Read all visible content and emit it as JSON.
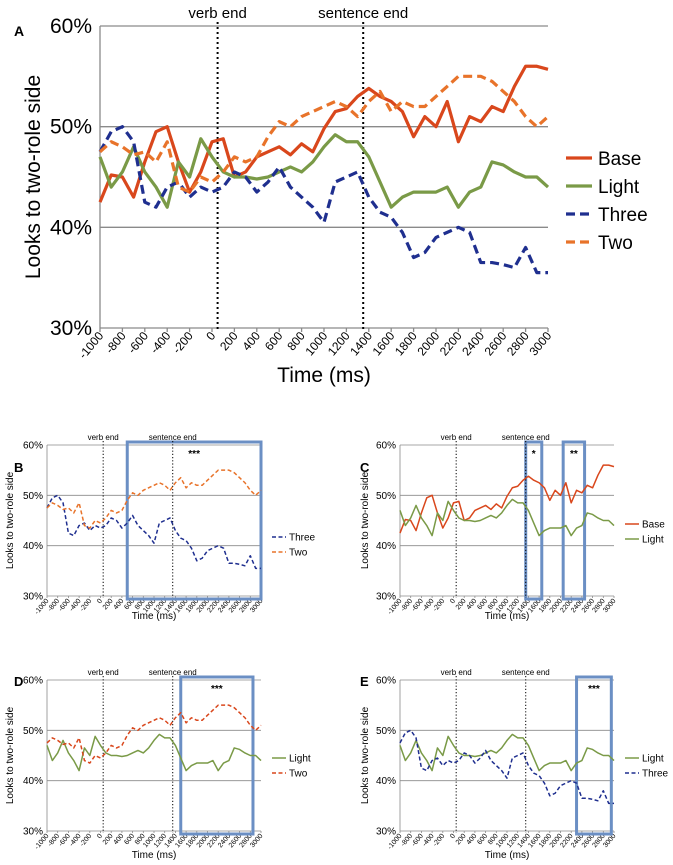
{
  "chart_data": [
    {
      "panel": "A",
      "type": "line",
      "xlabel": "Time (ms)",
      "ylabel": "Looks to two-role side",
      "ylim": [
        30,
        60
      ],
      "yticks": [
        "30%",
        "40%",
        "50%",
        "60%"
      ],
      "xlim": [
        -1000,
        3000
      ],
      "xticks": [
        "-1000",
        "-800",
        "-600",
        "-400",
        "-200",
        "0",
        "200",
        "400",
        "600",
        "800",
        "1000",
        "1200",
        "1400",
        "1600",
        "1800",
        "2000",
        "2200",
        "2400",
        "2600",
        "2800",
        "3000"
      ],
      "markers": [
        {
          "label": "verb end",
          "x": 50
        },
        {
          "label": "sentence end",
          "x": 1350
        }
      ],
      "boxes": [],
      "legend": [
        "Base",
        "Light",
        "Three",
        "Two"
      ],
      "x": [
        -1000,
        -900,
        -800,
        -700,
        -600,
        -500,
        -400,
        -300,
        -200,
        -100,
        0,
        100,
        200,
        300,
        400,
        500,
        600,
        700,
        800,
        900,
        1000,
        1100,
        1200,
        1300,
        1400,
        1500,
        1600,
        1700,
        1800,
        1900,
        2000,
        2100,
        2200,
        2300,
        2400,
        2500,
        2600,
        2700,
        2800,
        2900,
        3000
      ],
      "series": [
        {
          "name": "Base",
          "color": "#D9471C",
          "dash": "solid",
          "values": [
            42.5,
            45.2,
            45.0,
            43.0,
            46.5,
            49.5,
            50.0,
            46.5,
            43.5,
            45.5,
            48.5,
            48.8,
            45.0,
            45.5,
            47.0,
            47.5,
            48.0,
            47.2,
            48.3,
            47.5,
            49.8,
            51.5,
            51.8,
            53.0,
            53.8,
            53.0,
            52.5,
            51.5,
            49.0,
            51.0,
            50.0,
            52.5,
            48.5,
            51.0,
            50.5,
            52.0,
            51.5,
            54.0,
            56.0,
            56.0,
            55.7
          ]
        },
        {
          "name": "Light",
          "color": "#7A9A47",
          "dash": "solid",
          "values": [
            47.0,
            44.0,
            45.5,
            48.0,
            45.5,
            44.0,
            42.0,
            46.5,
            45.0,
            48.8,
            47.0,
            45.5,
            45.0,
            45.0,
            44.8,
            45.0,
            45.5,
            46.0,
            45.5,
            46.5,
            48.0,
            49.2,
            48.5,
            48.5,
            47.0,
            44.5,
            42.0,
            43.0,
            43.5,
            43.5,
            43.5,
            44.0,
            42.0,
            43.5,
            44.0,
            46.5,
            46.2,
            45.5,
            45.0,
            45.0,
            44.0
          ]
        },
        {
          "name": "Three",
          "color": "#1F2F8F",
          "dash": "dashed",
          "values": [
            47.5,
            49.5,
            50.0,
            48.5,
            42.5,
            42.0,
            44.0,
            44.5,
            43.0,
            44.0,
            43.5,
            44.0,
            45.5,
            45.0,
            43.5,
            44.5,
            46.0,
            44.0,
            43.0,
            42.0,
            40.5,
            44.5,
            45.0,
            45.5,
            43.0,
            41.5,
            41.0,
            39.5,
            37.0,
            37.5,
            39.0,
            39.5,
            40.0,
            39.5,
            36.5,
            36.5,
            36.3,
            36.0,
            38.0,
            35.5,
            35.5
          ]
        },
        {
          "name": "Two",
          "color": "#E8732A",
          "dash": "dashed",
          "values": [
            47.5,
            48.5,
            48.0,
            47.2,
            47.5,
            46.5,
            48.5,
            44.0,
            43.5,
            45.0,
            44.5,
            45.5,
            47.0,
            46.5,
            47.0,
            49.0,
            50.5,
            50.0,
            51.0,
            51.5,
            52.0,
            52.5,
            52.0,
            51.0,
            52.5,
            53.5,
            51.5,
            52.5,
            52.0,
            52.0,
            53.0,
            54.0,
            55.0,
            55.0,
            55.0,
            54.5,
            53.5,
            52.5,
            51.0,
            50.0,
            51.0
          ]
        }
      ]
    },
    {
      "panel": "B",
      "type": "line",
      "xlabel": "Time (ms)",
      "ylabel": "Looks to two-role side",
      "ylim": [
        30,
        60
      ],
      "yticks": [
        "30%",
        "40%",
        "50%",
        "60%"
      ],
      "xlim": [
        -1000,
        3000
      ],
      "xticks": [
        "-1000",
        "-800",
        "-600",
        "-400",
        "-200",
        "0",
        "200",
        "400",
        "600",
        "800",
        "1000",
        "1200",
        "1400",
        "1600",
        "1800",
        "2000",
        "2200",
        "2400",
        "2600",
        "2800",
        "3000"
      ],
      "markers": [
        {
          "label": "verb end",
          "x": 50
        },
        {
          "label": "sentence end",
          "x": 1350
        }
      ],
      "boxes": [
        {
          "x0": 500,
          "x1": 3000,
          "label": "***"
        }
      ],
      "legend": [
        "Three",
        "Two"
      ],
      "x": [
        -1000,
        -900,
        -800,
        -700,
        -600,
        -500,
        -400,
        -300,
        -200,
        -100,
        0,
        100,
        200,
        300,
        400,
        500,
        600,
        700,
        800,
        900,
        1000,
        1100,
        1200,
        1300,
        1400,
        1500,
        1600,
        1700,
        1800,
        1900,
        2000,
        2100,
        2200,
        2300,
        2400,
        2500,
        2600,
        2700,
        2800,
        2900,
        3000
      ],
      "series": [
        {
          "name": "Three",
          "color": "#1F2F8F",
          "dash": "dashed",
          "values": [
            47.5,
            49.5,
            50.0,
            48.5,
            42.5,
            42.0,
            44.0,
            44.5,
            43.0,
            44.0,
            43.5,
            44.0,
            45.5,
            45.0,
            43.5,
            44.5,
            46.0,
            44.0,
            43.0,
            42.0,
            40.5,
            44.5,
            45.0,
            45.5,
            43.0,
            41.5,
            41.0,
            39.5,
            37.0,
            37.5,
            39.0,
            39.5,
            40.0,
            39.5,
            36.5,
            36.5,
            36.3,
            36.0,
            38.0,
            35.5,
            35.5
          ]
        },
        {
          "name": "Two",
          "color": "#E8732A",
          "dash": "dashed",
          "values": [
            47.5,
            48.5,
            48.0,
            47.2,
            47.5,
            46.5,
            48.5,
            44.0,
            43.5,
            45.0,
            44.5,
            45.5,
            47.0,
            46.5,
            47.0,
            49.0,
            50.5,
            50.0,
            51.0,
            51.5,
            52.0,
            52.5,
            52.0,
            51.0,
            52.5,
            53.5,
            51.5,
            52.5,
            52.0,
            52.0,
            53.0,
            54.0,
            55.0,
            55.0,
            55.0,
            54.5,
            53.5,
            52.5,
            51.0,
            50.0,
            51.0
          ]
        }
      ]
    },
    {
      "panel": "C",
      "type": "line",
      "xlabel": "Time (ms)",
      "ylabel": "Looks to two-role side",
      "ylim": [
        30,
        60
      ],
      "yticks": [
        "30%",
        "40%",
        "50%",
        "60%"
      ],
      "xlim": [
        -1000,
        3000
      ],
      "xticks": [
        "-1000",
        "-800",
        "-600",
        "-400",
        "-200",
        "0",
        "200",
        "400",
        "600",
        "800",
        "1000",
        "1200",
        "1400",
        "1600",
        "1800",
        "2000",
        "2200",
        "2400",
        "2600",
        "2800",
        "3000"
      ],
      "markers": [
        {
          "label": "verb end",
          "x": 50
        },
        {
          "label": "sentence end",
          "x": 1350
        }
      ],
      "boxes": [
        {
          "x0": 1350,
          "x1": 1650,
          "label": "*"
        },
        {
          "x0": 2050,
          "x1": 2450,
          "label": "**"
        }
      ],
      "legend": [
        "Base",
        "Light"
      ],
      "x": [
        -1000,
        -900,
        -800,
        -700,
        -600,
        -500,
        -400,
        -300,
        -200,
        -100,
        0,
        100,
        200,
        300,
        400,
        500,
        600,
        700,
        800,
        900,
        1000,
        1100,
        1200,
        1300,
        1400,
        1500,
        1600,
        1700,
        1800,
        1900,
        2000,
        2100,
        2200,
        2300,
        2400,
        2500,
        2600,
        2700,
        2800,
        2900,
        3000
      ],
      "series": [
        {
          "name": "Base",
          "color": "#D9471C",
          "dash": "solid",
          "values": [
            42.5,
            45.2,
            45.0,
            43.0,
            46.5,
            49.5,
            50.0,
            46.5,
            43.5,
            45.5,
            48.5,
            48.8,
            45.0,
            45.5,
            47.0,
            47.5,
            48.0,
            47.2,
            48.3,
            47.5,
            49.8,
            51.5,
            51.8,
            53.0,
            53.8,
            53.0,
            52.5,
            51.5,
            49.0,
            51.0,
            50.0,
            52.5,
            48.5,
            51.0,
            50.5,
            52.0,
            51.5,
            54.0,
            56.0,
            56.0,
            55.7
          ]
        },
        {
          "name": "Light",
          "color": "#7A9A47",
          "dash": "solid",
          "values": [
            47.0,
            44.0,
            45.5,
            48.0,
            45.5,
            44.0,
            42.0,
            46.5,
            45.0,
            48.8,
            47.0,
            45.5,
            45.0,
            45.0,
            44.8,
            45.0,
            45.5,
            46.0,
            45.5,
            46.5,
            48.0,
            49.2,
            48.5,
            48.5,
            47.0,
            44.5,
            42.0,
            43.0,
            43.5,
            43.5,
            43.5,
            44.0,
            42.0,
            43.5,
            44.0,
            46.5,
            46.2,
            45.5,
            45.0,
            45.0,
            44.0
          ]
        }
      ]
    },
    {
      "panel": "D",
      "type": "line",
      "xlabel": "Time (ms)",
      "ylabel": "Looks to two-role side",
      "ylim": [
        30,
        60
      ],
      "yticks": [
        "30%",
        "40%",
        "50%",
        "60%"
      ],
      "xlim": [
        -1000,
        3000
      ],
      "xticks": [
        "-1000",
        "-800",
        "-600",
        "-400",
        "-200",
        "0",
        "200",
        "400",
        "600",
        "800",
        "1000",
        "1200",
        "1400",
        "1600",
        "1800",
        "2000",
        "2200",
        "2400",
        "2600",
        "2800",
        "3000"
      ],
      "markers": [
        {
          "label": "verb end",
          "x": 50
        },
        {
          "label": "sentence end",
          "x": 1350
        }
      ],
      "boxes": [
        {
          "x0": 1500,
          "x1": 2850,
          "label": "***"
        }
      ],
      "legend": [
        "Light",
        "Two"
      ],
      "x": [
        -1000,
        -900,
        -800,
        -700,
        -600,
        -500,
        -400,
        -300,
        -200,
        -100,
        0,
        100,
        200,
        300,
        400,
        500,
        600,
        700,
        800,
        900,
        1000,
        1100,
        1200,
        1300,
        1400,
        1500,
        1600,
        1700,
        1800,
        1900,
        2000,
        2100,
        2200,
        2300,
        2400,
        2500,
        2600,
        2700,
        2800,
        2900,
        3000
      ],
      "series": [
        {
          "name": "Light",
          "color": "#7A9A47",
          "dash": "solid",
          "values": [
            47.0,
            44.0,
            45.5,
            48.0,
            45.5,
            44.0,
            42.0,
            46.5,
            45.0,
            48.8,
            47.0,
            45.5,
            45.0,
            45.0,
            44.8,
            45.0,
            45.5,
            46.0,
            45.5,
            46.5,
            48.0,
            49.2,
            48.5,
            48.5,
            47.0,
            44.5,
            42.0,
            43.0,
            43.5,
            43.5,
            43.5,
            44.0,
            42.0,
            43.5,
            44.0,
            46.5,
            46.2,
            45.5,
            45.0,
            45.0,
            44.0
          ]
        },
        {
          "name": "Two",
          "color": "#D9471C",
          "dash": "dashed",
          "values": [
            47.5,
            48.5,
            48.0,
            47.2,
            47.5,
            46.5,
            48.5,
            44.0,
            43.5,
            45.0,
            44.5,
            45.5,
            47.0,
            46.5,
            47.0,
            49.0,
            50.5,
            50.0,
            51.0,
            51.5,
            52.0,
            52.5,
            52.0,
            51.0,
            52.5,
            53.5,
            51.5,
            52.5,
            52.0,
            52.0,
            53.0,
            54.0,
            55.0,
            55.0,
            55.0,
            54.5,
            53.5,
            52.5,
            51.0,
            50.0,
            51.0
          ]
        }
      ]
    },
    {
      "panel": "E",
      "type": "line",
      "xlabel": "Time (ms)",
      "ylabel": "Looks to two-role side",
      "ylim": [
        30,
        60
      ],
      "yticks": [
        "30%",
        "40%",
        "50%",
        "60%"
      ],
      "xlim": [
        -1000,
        3000
      ],
      "xticks": [
        "-1000",
        "-800",
        "-600",
        "-400",
        "-200",
        "0",
        "200",
        "400",
        "600",
        "800",
        "1000",
        "1200",
        "1400",
        "1600",
        "1800",
        "2000",
        "2200",
        "2400",
        "2600",
        "2800",
        "3000"
      ],
      "markers": [
        {
          "label": "verb end",
          "x": 50
        },
        {
          "label": "sentence end",
          "x": 1350
        }
      ],
      "boxes": [
        {
          "x0": 2300,
          "x1": 2950,
          "label": "***"
        }
      ],
      "legend": [
        "Light",
        "Three"
      ],
      "x": [
        -1000,
        -900,
        -800,
        -700,
        -600,
        -500,
        -400,
        -300,
        -200,
        -100,
        0,
        100,
        200,
        300,
        400,
        500,
        600,
        700,
        800,
        900,
        1000,
        1100,
        1200,
        1300,
        1400,
        1500,
        1600,
        1700,
        1800,
        1900,
        2000,
        2100,
        2200,
        2300,
        2400,
        2500,
        2600,
        2700,
        2800,
        2900,
        3000
      ],
      "series": [
        {
          "name": "Light",
          "color": "#7A9A47",
          "dash": "solid",
          "values": [
            47.0,
            44.0,
            45.5,
            48.0,
            45.5,
            44.0,
            42.0,
            46.5,
            45.0,
            48.8,
            47.0,
            45.5,
            45.0,
            45.0,
            44.8,
            45.0,
            45.5,
            46.0,
            45.5,
            46.5,
            48.0,
            49.2,
            48.5,
            48.5,
            47.0,
            44.5,
            42.0,
            43.0,
            43.5,
            43.5,
            43.5,
            44.0,
            42.0,
            43.5,
            44.0,
            46.5,
            46.2,
            45.5,
            45.0,
            45.0,
            44.0
          ]
        },
        {
          "name": "Three",
          "color": "#1F2F8F",
          "dash": "dashed",
          "values": [
            47.5,
            49.5,
            50.0,
            48.5,
            42.5,
            42.0,
            44.0,
            44.5,
            43.0,
            44.0,
            43.5,
            44.0,
            45.5,
            45.0,
            43.5,
            44.5,
            46.0,
            44.0,
            43.0,
            42.0,
            40.5,
            44.5,
            45.0,
            45.5,
            43.0,
            41.5,
            41.0,
            39.5,
            37.0,
            37.5,
            39.0,
            39.5,
            40.0,
            39.5,
            36.5,
            36.5,
            36.3,
            36.0,
            38.0,
            35.5,
            35.5
          ]
        }
      ]
    }
  ]
}
